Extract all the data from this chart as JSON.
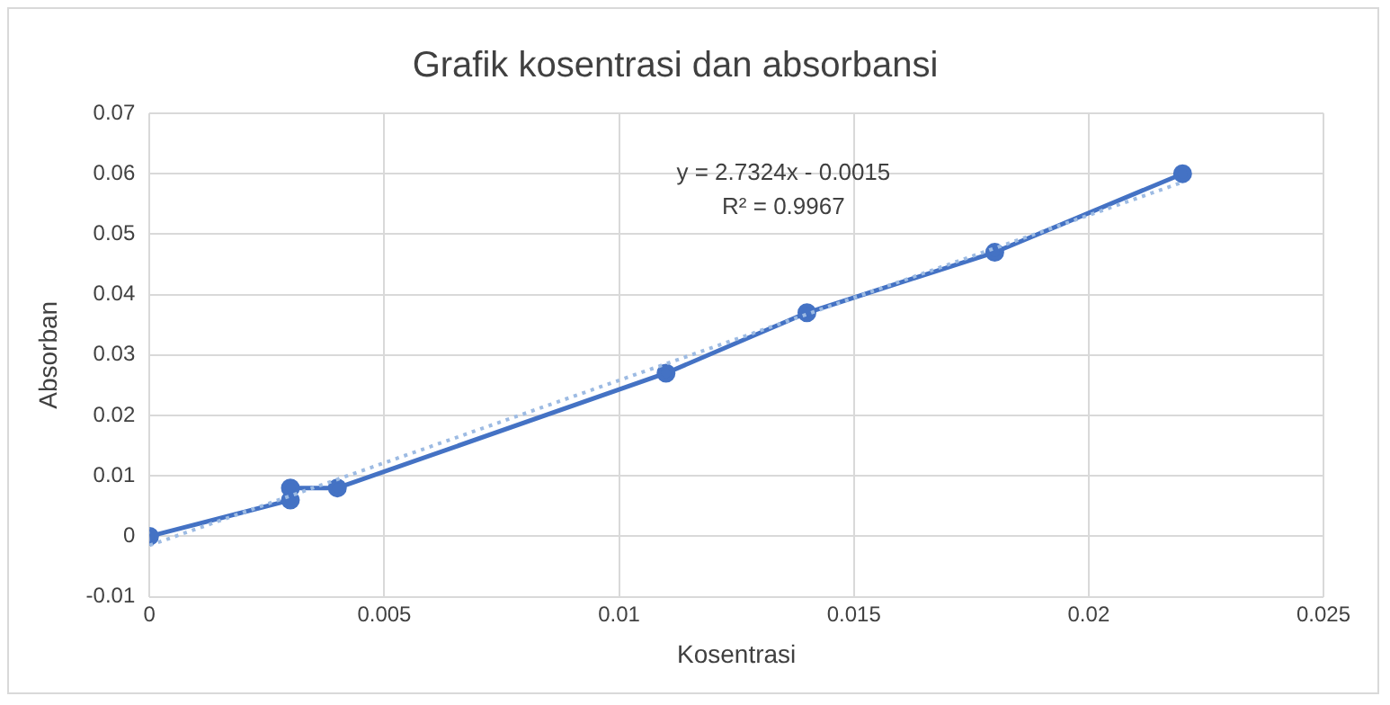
{
  "chart_data": {
    "type": "line",
    "title": "Grafik kosentrasi dan absorbansi",
    "xlabel": "Kosentrasi",
    "ylabel": "Absorban",
    "series": [
      {
        "color": "#4472c4",
        "x": [
          0,
          0.003,
          0.003,
          0.004,
          0.011,
          0.014,
          0.018,
          0.022
        ],
        "values": [
          0,
          0.006,
          0.008,
          0.008,
          0.027,
          0.037,
          0.047,
          0.06
        ],
        "marker": "circle",
        "line_style": "solid"
      },
      {
        "color": "#9dbbe3",
        "x": [
          0,
          0.022
        ],
        "values": [
          -0.0015,
          0.0586
        ],
        "marker": "none",
        "line_style": "dotted"
      }
    ],
    "annotations": [
      "y = 2.7324x - 0.0015",
      "R² = 0.9967"
    ],
    "xlim": [
      0,
      0.025
    ],
    "xticks": [
      0,
      0.005,
      0.01,
      0.015,
      0.02,
      0.025
    ],
    "ylim": [
      -0.01,
      0.07
    ],
    "yticks": [
      -0.01,
      0,
      0.01,
      0.02,
      0.03,
      0.04,
      0.05,
      0.06,
      0.07
    ],
    "grid": true,
    "legend": false
  }
}
